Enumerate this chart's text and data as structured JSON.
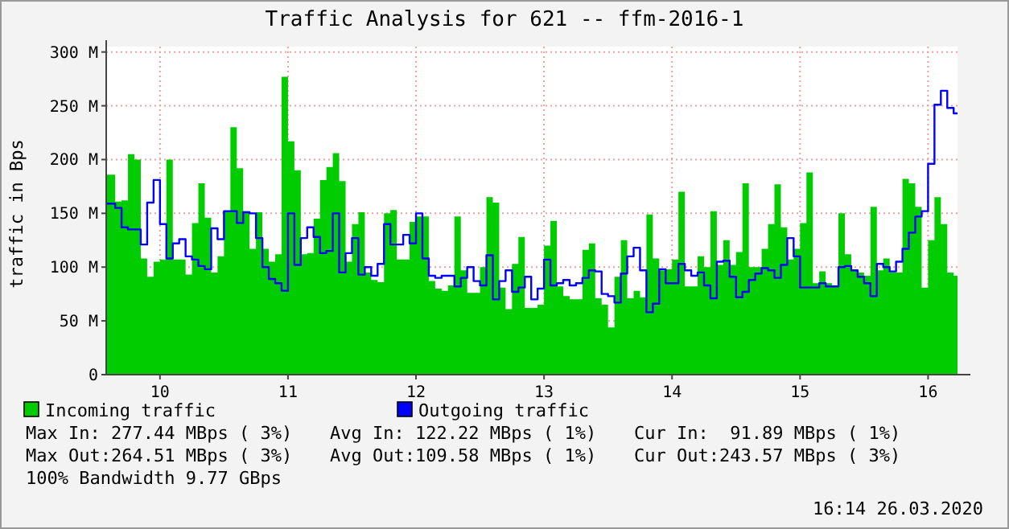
{
  "chart_data": {
    "type": "area",
    "title": "Traffic Analysis for 621 -- ffm-2016-1",
    "ylabel": "traffic in Bps",
    "x": [
      9.58,
      9.65,
      9.7,
      9.75,
      9.8,
      9.85,
      9.9,
      9.95,
      10.0,
      10.05,
      10.1,
      10.15,
      10.2,
      10.25,
      10.3,
      10.35,
      10.4,
      10.45,
      10.5,
      10.55,
      10.6,
      10.65,
      10.7,
      10.75,
      10.8,
      10.85,
      10.9,
      10.95,
      11.0,
      11.05,
      11.1,
      11.15,
      11.2,
      11.25,
      11.3,
      11.35,
      11.4,
      11.45,
      11.5,
      11.55,
      11.6,
      11.65,
      11.7,
      11.75,
      11.8,
      11.85,
      11.9,
      11.95,
      12.0,
      12.05,
      12.1,
      12.15,
      12.2,
      12.25,
      12.3,
      12.35,
      12.4,
      12.45,
      12.5,
      12.55,
      12.6,
      12.65,
      12.7,
      12.75,
      12.8,
      12.85,
      12.9,
      12.95,
      13.0,
      13.05,
      13.1,
      13.15,
      13.2,
      13.25,
      13.3,
      13.35,
      13.4,
      13.45,
      13.5,
      13.55,
      13.6,
      13.65,
      13.7,
      13.75,
      13.8,
      13.85,
      13.9,
      13.95,
      14.0,
      14.05,
      14.1,
      14.15,
      14.2,
      14.25,
      14.3,
      14.35,
      14.4,
      14.45,
      14.5,
      14.55,
      14.6,
      14.65,
      14.7,
      14.75,
      14.8,
      14.85,
      14.9,
      14.95,
      15.0,
      15.05,
      15.1,
      15.15,
      15.2,
      15.25,
      15.3,
      15.35,
      15.4,
      15.45,
      15.5,
      15.55,
      15.6,
      15.65,
      15.7,
      15.75,
      15.8,
      15.85,
      15.9,
      15.95,
      16.0,
      16.05,
      16.1,
      16.15,
      16.2
    ],
    "series": [
      {
        "name": "Incoming traffic",
        "type": "area",
        "color": "#00cc00",
        "values": [
          186,
          161,
          162,
          205,
          200,
          108,
          91,
          105,
          107,
          200,
          107,
          107,
          93,
          141,
          178,
          146,
          95,
          110,
          152,
          230,
          192,
          152,
          117,
          151,
          117,
          105,
          112,
          277,
          217,
          190,
          112,
          113,
          145,
          181,
          193,
          206,
          180,
          105,
          140,
          151,
          95,
          88,
          86,
          150,
          153,
          107,
          107,
          142,
          147,
          147,
          87,
          80,
          78,
          83,
          147,
          97,
          76,
          76,
          100,
          165,
          160,
          81,
          61,
          103,
          128,
          62,
          62,
          65,
          120,
          143,
          82,
          73,
          70,
          70,
          116,
          122,
          71,
          65,
          44,
          91,
          125,
          71,
          78,
          72,
          149,
          108,
          97,
          98,
          107,
          170,
          82,
          82,
          110,
          100,
          152,
          102,
          125,
          102,
          114,
          178,
          100,
          100,
          117,
          140,
          177,
          137,
          107,
          117,
          141,
          188,
          85,
          96,
          85,
          82,
          150,
          112,
          98,
          95,
          92,
          156,
          97,
          108,
          95,
          95,
          182,
          178,
          156,
          81,
          125,
          165,
          140,
          95,
          92
        ]
      },
      {
        "name": "Outgoing traffic",
        "type": "step",
        "color": "#0000ff",
        "values": [
          159,
          155,
          137,
          135,
          135,
          121,
          160,
          181,
          140,
          108,
          122,
          126,
          110,
          107,
          101,
          98,
          136,
          126,
          152,
          152,
          141,
          151,
          150,
          127,
          100,
          89,
          85,
          78,
          150,
          102,
          127,
          137,
          128,
          113,
          115,
          150,
          95,
          113,
          127,
          93,
          100,
          92,
          103,
          140,
          121,
          121,
          130,
          122,
          150,
          108,
          92,
          90,
          92,
          92,
          82,
          90,
          100,
          87,
          83,
          111,
          70,
          87,
          97,
          77,
          81,
          91,
          70,
          80,
          107,
          83,
          85,
          88,
          83,
          85,
          90,
          97,
          96,
          75,
          73,
          67,
          94,
          110,
          118,
          97,
          58,
          66,
          98,
          85,
          85,
          103,
          97,
          92,
          95,
          83,
          71,
          105,
          106,
          91,
          72,
          77,
          88,
          94,
          99,
          97,
          90,
          102,
          127,
          110,
          81,
          81,
          81,
          85,
          82,
          82,
          100,
          101,
          97,
          91,
          85,
          73,
          103,
          100,
          96,
          105,
          117,
          132,
          147,
          152,
          196,
          251,
          264,
          248,
          243
        ]
      }
    ],
    "xlim": [
      9.58,
      16.23
    ],
    "xticks": [
      10,
      11,
      12,
      13,
      14,
      15,
      16
    ],
    "ylim": [
      0,
      305
    ],
    "yticks": [
      0,
      {
        "value": 50,
        "label": "50 M"
      },
      {
        "value": 100,
        "label": "100 M"
      },
      {
        "value": 150,
        "label": "150 M"
      },
      {
        "value": 200,
        "label": "200 M"
      },
      {
        "value": 250,
        "label": "250 M"
      },
      {
        "value": 300,
        "label": "300 M"
      }
    ],
    "grid": true,
    "legend": "bottom",
    "annotations": [
      "Max In: 277.44 MBps ( 3%)",
      "Avg In: 122.22 MBps ( 1%)",
      "Cur In:  91.89 MBps ( 1%)",
      "Max Out:264.51 MBps ( 3%)",
      "Avg Out:109.58 MBps ( 1%)",
      "Cur Out:243.57 MBps ( 3%)",
      "100% Bandwidth 9.77 GBps",
      "16:14 26.03.2020"
    ]
  }
}
